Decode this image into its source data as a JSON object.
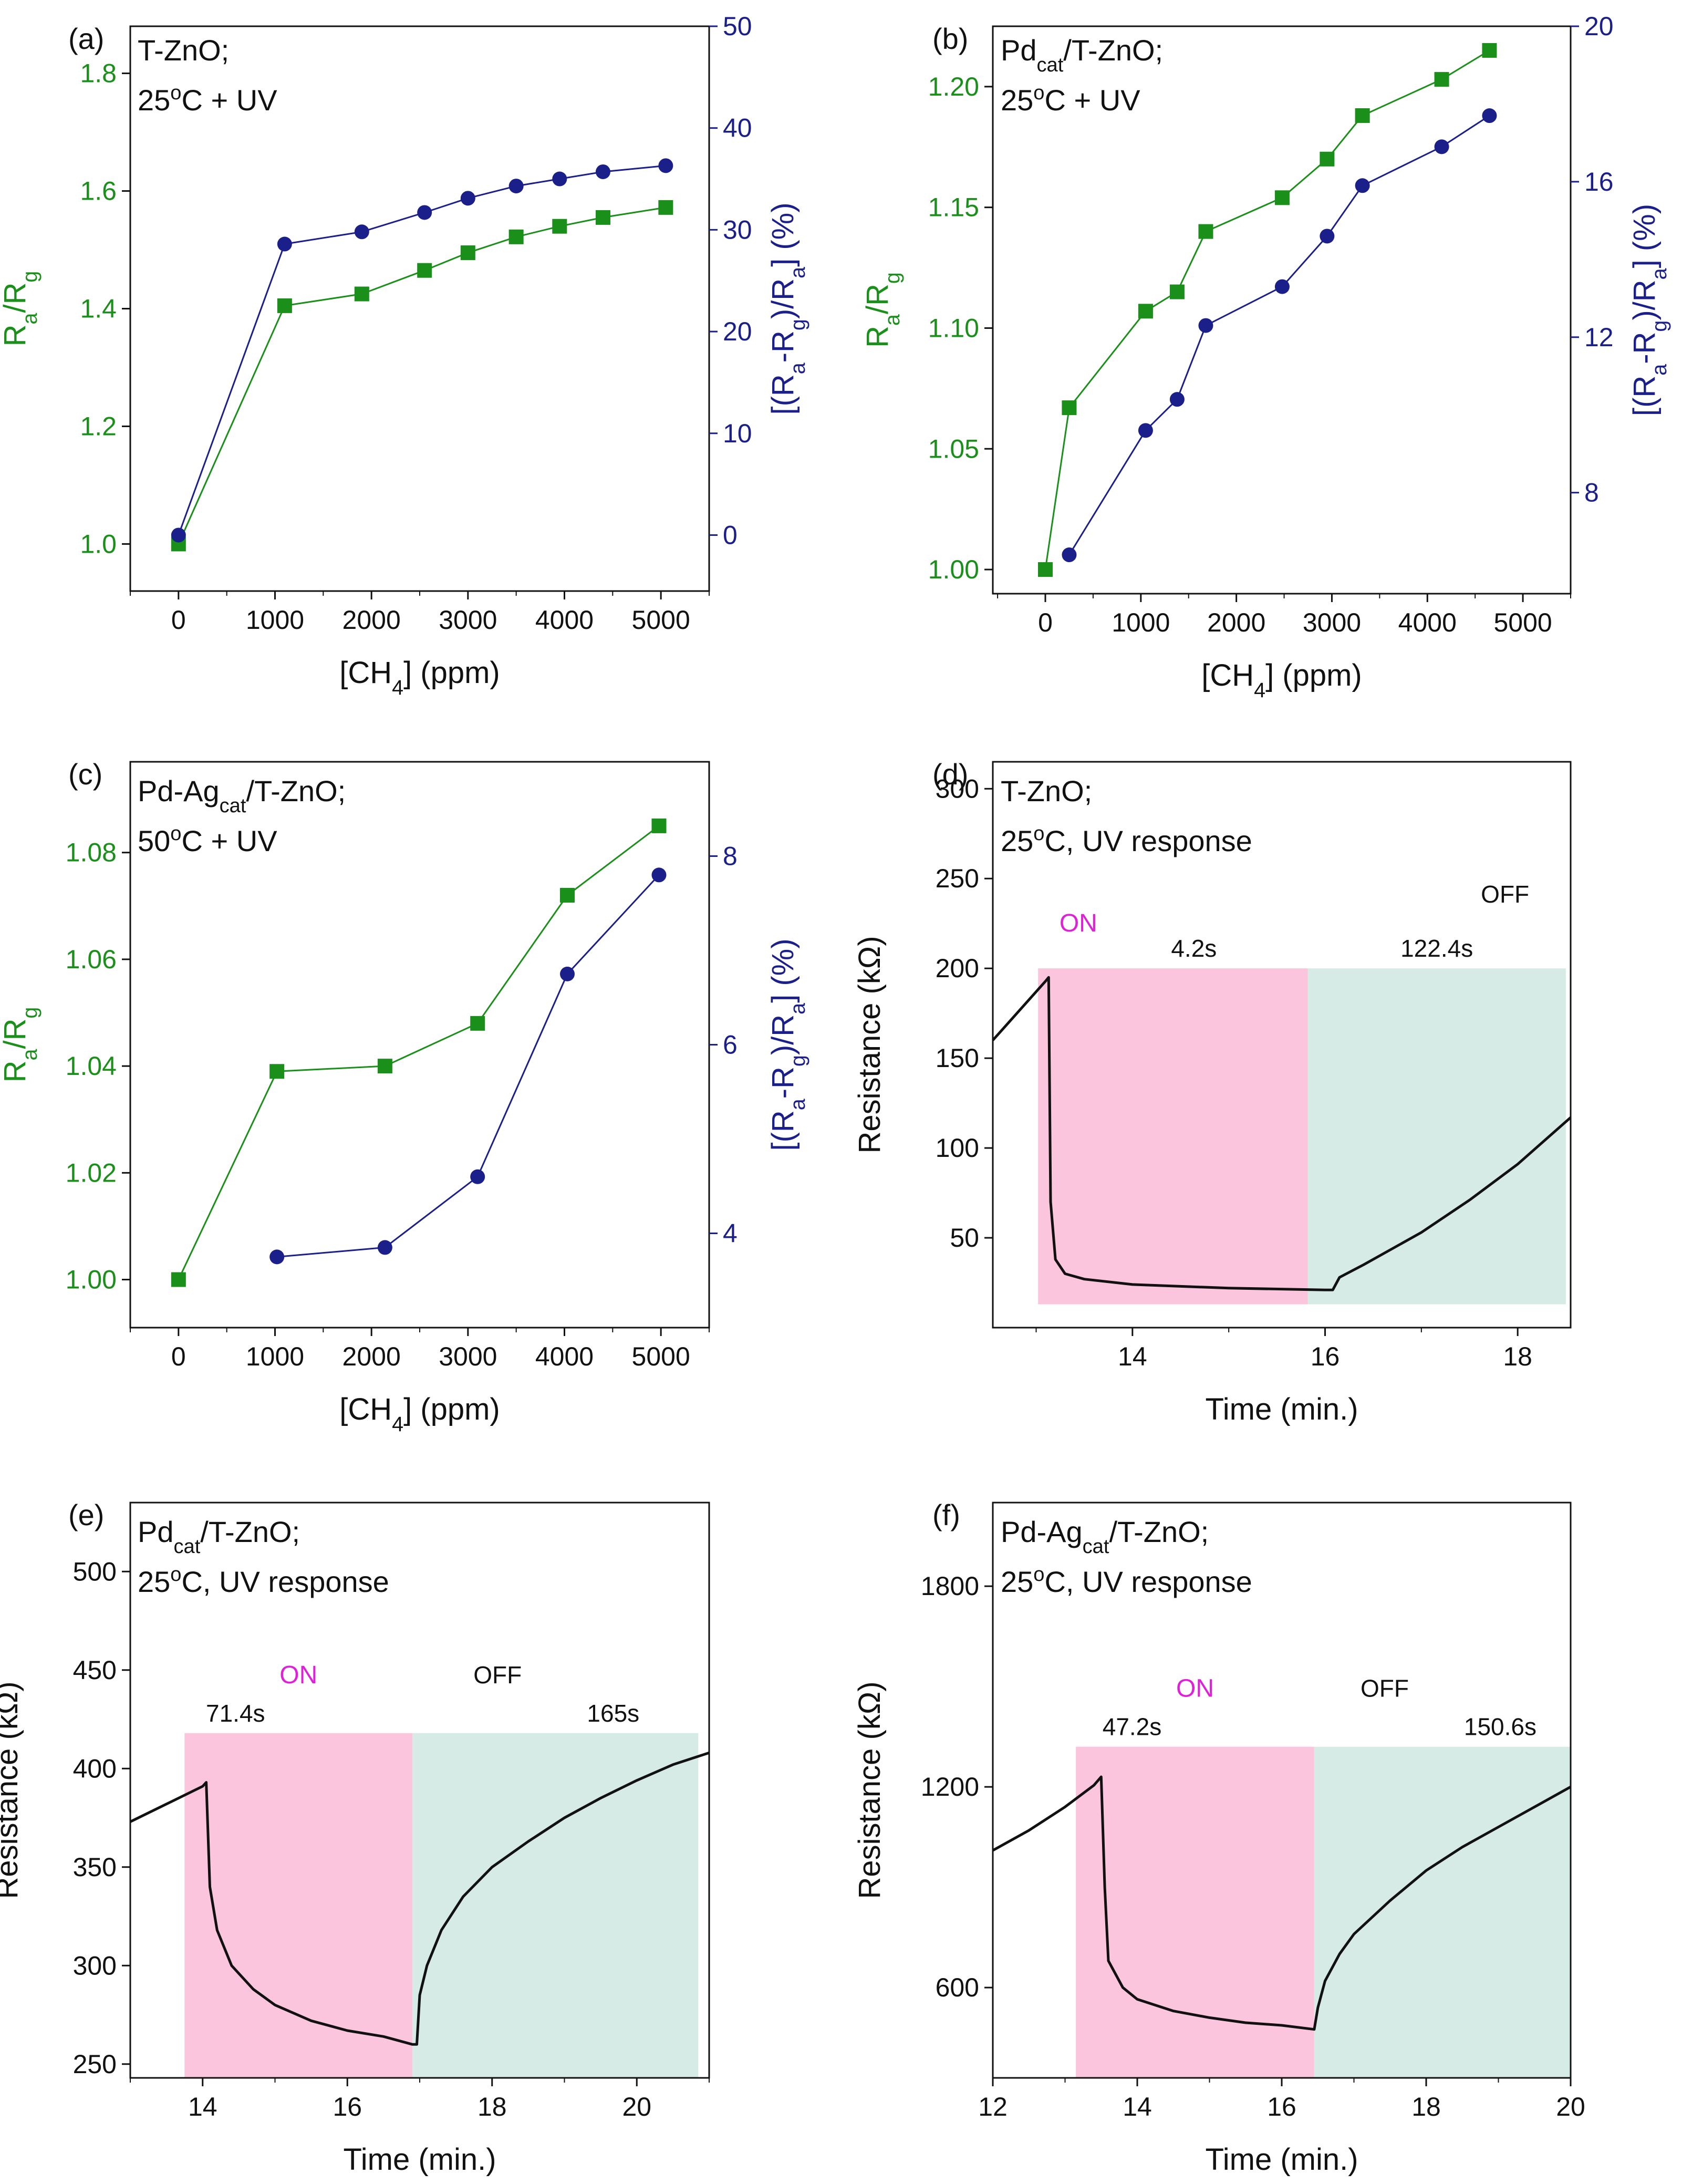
{
  "colors": {
    "green": "#1a8f1a",
    "navy": "#1b1f8a",
    "black": "#111111",
    "on_region": "#fbc6dd",
    "off_region": "#d6ebe6",
    "on_text": "#e020d8"
  },
  "chart_data": [
    {
      "type": "line",
      "panel": "(a)",
      "info_lines": [
        "T-ZnO;",
        "25°C + UV"
      ],
      "xlabel": "[CH4] (ppm)",
      "ylabel": "Ra/Rg",
      "y2label": "[(Ra-Rg)/Ra] (%)",
      "xlim": [
        -500,
        5500
      ],
      "ylim": [
        0.92,
        1.88
      ],
      "y2lim": [
        -5.5,
        50
      ],
      "xticks": [
        0,
        1000,
        2000,
        3000,
        4000,
        5000
      ],
      "xtick_labels": [
        "0",
        "1000",
        "2000",
        "3000",
        "4000",
        "5000"
      ],
      "yticks": [
        1.0,
        1.2,
        1.4,
        1.6,
        1.8
      ],
      "ytick_labels": [
        "1.0",
        "1.2",
        "1.4",
        "1.6",
        "1.8"
      ],
      "y2ticks": [
        0,
        10,
        20,
        30,
        40,
        50
      ],
      "y2tick_labels": [
        "0",
        "10",
        "20",
        "30",
        "40",
        "50"
      ],
      "series": [
        {
          "name": "Ra/Rg",
          "axis": "left",
          "marker": "square",
          "x": [
            0,
            1100,
            1900,
            2550,
            3000,
            3500,
            3950,
            4400,
            5050
          ],
          "values": [
            1.0,
            1.405,
            1.425,
            1.465,
            1.495,
            1.522,
            1.54,
            1.555,
            1.572
          ]
        },
        {
          "name": "[(Ra-Rg)/Ra] (%)",
          "axis": "right",
          "marker": "circle",
          "x": [
            0,
            1100,
            1900,
            2550,
            3000,
            3500,
            3950,
            4400,
            5050
          ],
          "values": [
            0,
            28.6,
            29.8,
            31.7,
            33.1,
            34.3,
            35.0,
            35.7,
            36.3
          ]
        }
      ]
    },
    {
      "type": "line",
      "panel": "(b)",
      "info_lines": [
        "Pdcat/T-ZnO;",
        "25°C + UV"
      ],
      "xlabel": "[CH4] (ppm)",
      "ylabel": "Ra/Rg",
      "y2label": "[(Ra-Rg)/Ra] (%)",
      "xlim": [
        -550,
        5500
      ],
      "ylim": [
        0.99,
        1.225
      ],
      "y2lim": [
        5.4,
        20
      ],
      "xticks": [
        0,
        1000,
        2000,
        3000,
        4000,
        5000
      ],
      "xtick_labels": [
        "0",
        "1000",
        "2000",
        "3000",
        "4000",
        "5000"
      ],
      "yticks": [
        1.0,
        1.05,
        1.1,
        1.15,
        1.2
      ],
      "ytick_labels": [
        "1.00",
        "1.05",
        "1.10",
        "1.15",
        "1.20"
      ],
      "y2ticks": [
        8,
        12,
        16,
        20
      ],
      "y2tick_labels": [
        "8",
        "12",
        "16",
        "20"
      ],
      "series": [
        {
          "name": "Ra/Rg",
          "axis": "left",
          "marker": "square",
          "x": [
            0,
            250,
            1050,
            1380,
            1680,
            2480,
            2950,
            3320,
            4150,
            4650
          ],
          "values": [
            1.0,
            1.067,
            1.107,
            1.115,
            1.14,
            1.154,
            1.17,
            1.188,
            1.203,
            1.215
          ]
        },
        {
          "name": "[(Ra-Rg)/Ra] (%)",
          "axis": "right",
          "marker": "circle",
          "x": [
            250,
            1050,
            1380,
            1680,
            2480,
            2950,
            3320,
            4150,
            4650
          ],
          "values": [
            6.4,
            9.6,
            10.4,
            12.3,
            13.3,
            14.6,
            15.9,
            16.9,
            17.7
          ]
        }
      ]
    },
    {
      "type": "line",
      "panel": "(c)",
      "info_lines": [
        "Pd-Agcat/T-ZnO;",
        "50°C + UV"
      ],
      "xlabel": "[CH4] (ppm)",
      "ylabel": "Ra/Rg",
      "y2label": "[(Ra-Rg)/Ra] (%)",
      "xlim": [
        -500,
        5500
      ],
      "ylim": [
        0.991,
        1.097
      ],
      "y2lim": [
        3,
        9
      ],
      "xticks": [
        0,
        1000,
        2000,
        3000,
        4000,
        5000
      ],
      "xtick_labels": [
        "0",
        "1000",
        "2000",
        "3000",
        "4000",
        "5000"
      ],
      "yticks": [
        1.0,
        1.02,
        1.04,
        1.06,
        1.08
      ],
      "ytick_labels": [
        "1.00",
        "1.02",
        "1.04",
        "1.06",
        "1.08"
      ],
      "y2ticks": [
        4,
        6,
        8
      ],
      "y2tick_labels": [
        "4",
        "6",
        "8"
      ],
      "series": [
        {
          "name": "Ra/Rg",
          "axis": "left",
          "marker": "square",
          "x": [
            0,
            1020,
            2140,
            3100,
            4030,
            4980
          ],
          "values": [
            1.0,
            1.039,
            1.04,
            1.048,
            1.072,
            1.085
          ]
        },
        {
          "name": "[(Ra-Rg)/Ra] (%)",
          "axis": "right",
          "marker": "circle",
          "x": [
            1020,
            2140,
            3100,
            4030,
            4980
          ],
          "values": [
            3.75,
            3.85,
            4.6,
            6.75,
            7.8
          ]
        }
      ]
    },
    {
      "type": "line",
      "panel": "(d)",
      "info_lines": [
        "T-ZnO;",
        "25°C, UV response"
      ],
      "xlabel": "Time (min.)",
      "ylabel": "Resistance (kΩ)",
      "xlim": [
        12.55,
        18.55
      ],
      "ylim": [
        0,
        315
      ],
      "xticks": [
        14,
        16,
        18
      ],
      "xtick_labels": [
        "14",
        "16",
        "18"
      ],
      "yticks": [
        50,
        100,
        150,
        200,
        250,
        300
      ],
      "ytick_labels": [
        "50",
        "100",
        "150",
        "200",
        "250",
        "300"
      ],
      "regions": {
        "on": {
          "from": 13.02,
          "to": 15.82,
          "top": 200,
          "bottom": 13
        },
        "off": {
          "from": 15.82,
          "to": 18.5,
          "top": 200,
          "bottom": 13
        }
      },
      "annotations": {
        "on_label": "ON",
        "on_time": "4.2s",
        "off_label": "OFF",
        "off_time": "122.4s"
      },
      "series": [
        {
          "name": "Resistance",
          "x": [
            12.55,
            13.1,
            13.13,
            13.15,
            13.2,
            13.3,
            13.5,
            14.0,
            15.0,
            16.0,
            16.08,
            16.15,
            16.4,
            17.0,
            17.5,
            18.0,
            18.55
          ],
          "values": [
            160,
            193,
            195,
            70,
            38,
            30,
            27,
            24,
            22,
            21,
            21,
            28,
            35,
            53,
            71,
            91,
            117
          ]
        }
      ]
    },
    {
      "type": "line",
      "panel": "(e)",
      "info_lines": [
        "Pdcat/T-ZnO;",
        "25°C, UV response"
      ],
      "xlabel": "Time (min.)",
      "ylabel": "Resistance (kΩ)",
      "xlim": [
        13.0,
        21.0
      ],
      "ylim": [
        243,
        535
      ],
      "xticks": [
        14,
        16,
        18,
        20
      ],
      "xtick_labels": [
        "14",
        "16",
        "18",
        "20"
      ],
      "yticks": [
        250,
        300,
        350,
        400,
        450,
        500
      ],
      "ytick_labels": [
        "250",
        "300",
        "350",
        "400",
        "450",
        "500"
      ],
      "regions": {
        "on": {
          "from": 13.75,
          "to": 16.9,
          "top": 418,
          "bottom": 243
        },
        "off": {
          "from": 16.9,
          "to": 20.85,
          "top": 418,
          "bottom": 243
        }
      },
      "annotations": {
        "on_label": "ON",
        "on_time": "71.4s",
        "off_label": "OFF",
        "off_time": "165s"
      },
      "series": [
        {
          "name": "Resistance",
          "x": [
            13.0,
            13.5,
            14.0,
            14.05,
            14.1,
            14.2,
            14.4,
            14.7,
            15.0,
            15.5,
            16.0,
            16.5,
            16.9,
            16.96,
            17.0,
            17.1,
            17.3,
            17.6,
            18.0,
            18.5,
            19.0,
            19.5,
            20.0,
            20.5,
            21.0
          ],
          "values": [
            373,
            382,
            391,
            393,
            340,
            318,
            300,
            288,
            280,
            272,
            267,
            264,
            260,
            260,
            285,
            300,
            318,
            335,
            350,
            363,
            375,
            385,
            394,
            402,
            408
          ]
        }
      ]
    },
    {
      "type": "line",
      "panel": "(f)",
      "info_lines": [
        "Pd-Agcat/T-ZnO;",
        "25°C, UV response"
      ],
      "xlabel": "Time (min.)",
      "ylabel": "Resistance (kΩ)",
      "xlim": [
        12.0,
        20.0
      ],
      "ylim": [
        330,
        2050
      ],
      "xticks": [
        12,
        14,
        16,
        18,
        20
      ],
      "xtick_labels": [
        "12",
        "14",
        "16",
        "18",
        "20"
      ],
      "yticks": [
        600,
        1200,
        1800
      ],
      "ytick_labels": [
        "600",
        "1200",
        "1800"
      ],
      "regions": {
        "on": {
          "from": 13.15,
          "to": 16.45,
          "top": 1320,
          "bottom": 330
        },
        "off": {
          "from": 16.45,
          "to": 20.0,
          "top": 1320,
          "bottom": 330
        }
      },
      "annotations": {
        "on_label": "ON",
        "on_time": "47.2s",
        "off_label": "OFF",
        "off_time": "150.6s"
      },
      "series": [
        {
          "name": "Resistance",
          "x": [
            12.0,
            12.5,
            13.0,
            13.4,
            13.5,
            13.55,
            13.6,
            13.8,
            14.0,
            14.5,
            15.0,
            15.5,
            16.0,
            16.45,
            16.5,
            16.6,
            16.8,
            17.0,
            17.5,
            18.0,
            18.5,
            19.0,
            19.5,
            20.0
          ],
          "values": [
            1010,
            1070,
            1140,
            1205,
            1230,
            900,
            680,
            600,
            565,
            530,
            510,
            495,
            487,
            475,
            540,
            620,
            700,
            760,
            860,
            950,
            1020,
            1080,
            1140,
            1200
          ]
        }
      ]
    }
  ]
}
